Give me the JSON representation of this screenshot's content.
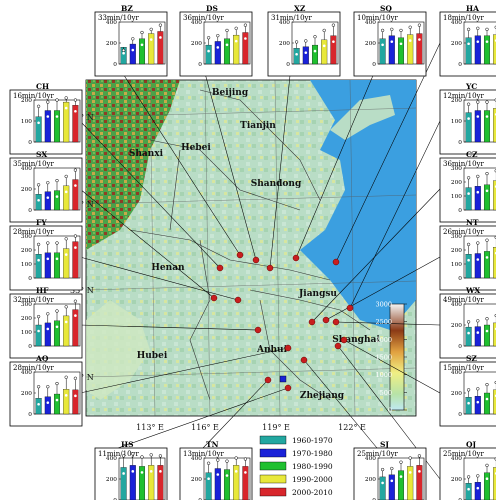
{
  "chart_data": {
    "type": "bar",
    "title": "",
    "series_names": [
      "1960-1970",
      "1970-1980",
      "1980-1990",
      "1990-2000",
      "2000-2010"
    ],
    "colors": [
      "#22a7a0",
      "#1a22d8",
      "#1fc02f",
      "#e8e83a",
      "#d8262c"
    ],
    "map_labels": {
      "places": [
        "Beijing",
        "Tianjin",
        "Hebei",
        "Shandong",
        "Shanxi",
        "Henan",
        "Jiangsu",
        "Shanghai",
        "Anhui",
        "Hubei",
        "Zhejiang"
      ],
      "lat": [
        "39° N",
        "36° N",
        "33° N",
        "30° N"
      ],
      "lon": [
        "113° E",
        "116° E",
        "119° E",
        "122° E"
      ]
    },
    "colorbar": {
      "ticks": [
        "3000",
        "2500",
        "2000",
        "1500",
        "1000",
        "500",
        "0"
      ],
      "range": [
        0,
        3000
      ]
    },
    "stations": [
      {
        "id": "BZ",
        "trend": "33min/10yr",
        "yticks": [
          "400",
          "200",
          "0"
        ],
        "ylim": [
          0,
          400
        ],
        "values": [
          160,
          190,
          240,
          290,
          310
        ],
        "errors": [
          130,
          240,
          300,
          330,
          370
        ]
      },
      {
        "id": "DS",
        "trend": "36min/10yr",
        "yticks": [
          "400",
          "200",
          "0"
        ],
        "ylim": [
          0,
          400
        ],
        "values": [
          180,
          215,
          240,
          275,
          300
        ],
        "errors": [
          250,
          270,
          320,
          340,
          370
        ]
      },
      {
        "id": "XZ",
        "trend": "31min/10yr",
        "yticks": [
          "400",
          "200",
          "0"
        ],
        "ylim": [
          0,
          400
        ],
        "values": [
          150,
          165,
          180,
          230,
          270
        ],
        "errors": [
          210,
          220,
          260,
          320,
          370
        ]
      },
      {
        "id": "SQ",
        "trend": "10min/10yr",
        "yticks": [
          "400",
          "200",
          "0"
        ],
        "ylim": [
          0,
          400
        ],
        "values": [
          240,
          270,
          250,
          280,
          290
        ],
        "errors": [
          320,
          330,
          320,
          350,
          370
        ]
      },
      {
        "id": "HA",
        "trend": "18min/10yr",
        "yticks": [
          "400",
          "200",
          "0"
        ],
        "ylim": [
          0,
          400
        ],
        "values": [
          250,
          270,
          270,
          280,
          300
        ],
        "errors": [
          330,
          340,
          330,
          350,
          380
        ]
      },
      {
        "id": "CH",
        "trend": "16min/10yr",
        "yticks": [
          "200",
          "100",
          "0"
        ],
        "ylim": [
          0,
          200
        ],
        "values": [
          120,
          150,
          150,
          190,
          175
        ],
        "errors": [
          170,
          190,
          200,
          210,
          200
        ]
      },
      {
        "id": "SX",
        "trend": "35min/10yr",
        "yticks": [
          "400",
          "200",
          "0"
        ],
        "ylim": [
          0,
          400
        ],
        "values": [
          150,
          175,
          185,
          230,
          290
        ],
        "errors": [
          240,
          260,
          280,
          320,
          380
        ]
      },
      {
        "id": "FY",
        "trend": "28min/10yr",
        "yticks": [
          "300",
          "200",
          "100",
          "0"
        ],
        "ylim": [
          0,
          300
        ],
        "values": [
          170,
          180,
          180,
          210,
          260
        ],
        "errors": [
          240,
          250,
          250,
          280,
          300
        ]
      },
      {
        "id": "HF",
        "trend": "32min/10yr",
        "yticks": [
          "300",
          "200",
          "100",
          "0"
        ],
        "ylim": [
          0,
          300
        ],
        "values": [
          150,
          165,
          180,
          215,
          260
        ],
        "errors": [
          210,
          230,
          250,
          280,
          320
        ]
      },
      {
        "id": "AQ",
        "trend": "28min/10yr",
        "yticks": [
          "400",
          "200",
          "0"
        ],
        "ylim": [
          0,
          400
        ],
        "values": [
          150,
          165,
          190,
          235,
          230
        ],
        "errors": [
          260,
          260,
          290,
          350,
          340
        ]
      },
      {
        "id": "HS",
        "trend": "11min/10yr",
        "yticks": [
          "400",
          "200",
          "0"
        ],
        "ylim": [
          0,
          400
        ],
        "values": [
          310,
          330,
          320,
          330,
          330
        ],
        "errors": [
          420,
          440,
          410,
          430,
          420
        ]
      },
      {
        "id": "TN",
        "trend": "13min/10yr",
        "yticks": [
          "400",
          "200",
          "0"
        ],
        "ylim": [
          0,
          400
        ],
        "values": [
          260,
          300,
          290,
          330,
          320
        ],
        "errors": [
          350,
          380,
          370,
          400,
          390
        ]
      },
      {
        "id": "SJ",
        "trend": "25min/10yr",
        "yticks": [
          "400",
          "200",
          "0"
        ],
        "ylim": [
          0,
          400
        ],
        "values": [
          220,
          240,
          280,
          320,
          330
        ],
        "errors": [
          290,
          300,
          360,
          400,
          420
        ]
      },
      {
        "id": "QJ",
        "trend": "25min/10yr",
        "yticks": [
          "400",
          "200",
          "0"
        ],
        "ylim": [
          0,
          400
        ],
        "values": [
          160,
          170,
          260,
          310,
          300
        ],
        "errors": [
          220,
          230,
          330,
          390,
          370
        ]
      },
      {
        "id": "YC",
        "trend": "12min/10yr",
        "yticks": [
          "200",
          "100",
          "0"
        ],
        "ylim": [
          0,
          200
        ],
        "values": [
          140,
          150,
          150,
          160,
          170
        ],
        "errors": [
          180,
          190,
          190,
          200,
          210
        ]
      },
      {
        "id": "CZ",
        "trend": "36min/10yr",
        "yticks": [
          "300",
          "200",
          "100",
          "0"
        ],
        "ylim": [
          0,
          300
        ],
        "values": [
          160,
          170,
          180,
          210,
          240
        ],
        "errors": [
          230,
          240,
          260,
          280,
          300
        ]
      },
      {
        "id": "NT",
        "trend": "26min/10yr",
        "yticks": [
          "300",
          "200",
          "100",
          "0"
        ],
        "ylim": [
          0,
          300
        ],
        "values": [
          170,
          175,
          190,
          220,
          240
        ],
        "errors": [
          240,
          250,
          270,
          290,
          300
        ]
      },
      {
        "id": "WX",
        "trend": "49min/10yr",
        "yticks": [
          "400",
          "200",
          "0"
        ],
        "ylim": [
          0,
          400
        ],
        "values": [
          180,
          185,
          200,
          220,
          310
        ],
        "errors": [
          230,
          240,
          260,
          290,
          380
        ]
      },
      {
        "id": "SZ",
        "trend": "15min/10yr",
        "yticks": [
          "400",
          "200",
          "0"
        ],
        "ylim": [
          0,
          400
        ],
        "values": [
          160,
          170,
          200,
          230,
          230
        ],
        "errors": [
          230,
          240,
          280,
          300,
          320
        ]
      }
    ]
  }
}
